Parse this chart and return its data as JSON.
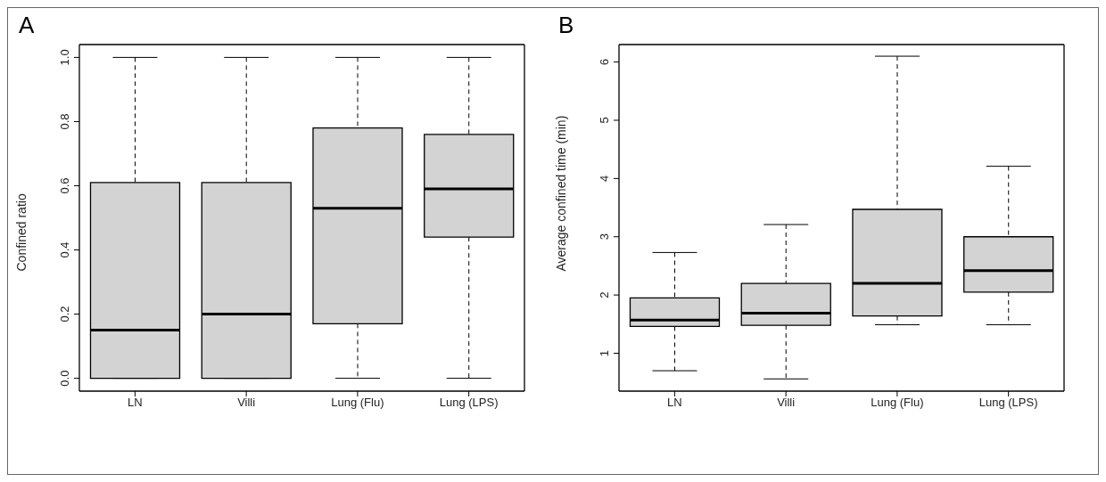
{
  "chart_data": [
    {
      "type": "box",
      "annotations": [
        "A"
      ],
      "ylabel": "Confined ratio",
      "categories": [
        "LN",
        "Villi",
        "Lung (Flu)",
        "Lung (LPS)"
      ],
      "color": "#d3d3d3",
      "ylim": [
        -0.04,
        1.04
      ],
      "yticks": [
        {
          "value": 0,
          "label": "0.0"
        },
        {
          "value": 0.2,
          "label": "0.2"
        },
        {
          "value": 0.4,
          "label": "0.4"
        },
        {
          "value": 0.6,
          "label": "0.6"
        },
        {
          "value": 0.8,
          "label": "0.8"
        },
        {
          "value": 1,
          "label": "1.0"
        }
      ],
      "boxes": [
        {
          "low": 0,
          "q1": 0,
          "median": 0.15,
          "q3": 0.61,
          "high": 1
        },
        {
          "low": 0,
          "q1": 0,
          "median": 0.2,
          "q3": 0.61,
          "high": 1
        },
        {
          "low": 0,
          "q1": 0.17,
          "median": 0.53,
          "q3": 0.78,
          "high": 1
        },
        {
          "low": 0,
          "q1": 0.44,
          "median": 0.59,
          "q3": 0.76,
          "high": 1
        }
      ]
    },
    {
      "type": "box",
      "annotations": [
        "B"
      ],
      "ylabel": "Average confined time (min)",
      "categories": [
        "LN",
        "Villi",
        "Lung (Flu)",
        "Lung (LPS)"
      ],
      "color": "#d3d3d3",
      "ylim": [
        0.35,
        6.3
      ],
      "yticks": [
        1,
        2,
        3,
        4,
        5,
        6
      ],
      "boxes": [
        {
          "low": 0.7,
          "q1": 1.46,
          "median": 1.57,
          "q3": 1.95,
          "high": 2.73
        },
        {
          "low": 0.56,
          "q1": 1.48,
          "median": 1.69,
          "q3": 2.2,
          "high": 3.21
        },
        {
          "low": 1.49,
          "q1": 1.64,
          "median": 2.2,
          "q3": 3.47,
          "high": 6.1
        },
        {
          "low": 1.49,
          "q1": 2.05,
          "median": 2.42,
          "q3": 3.0,
          "high": 4.21
        }
      ]
    }
  ]
}
